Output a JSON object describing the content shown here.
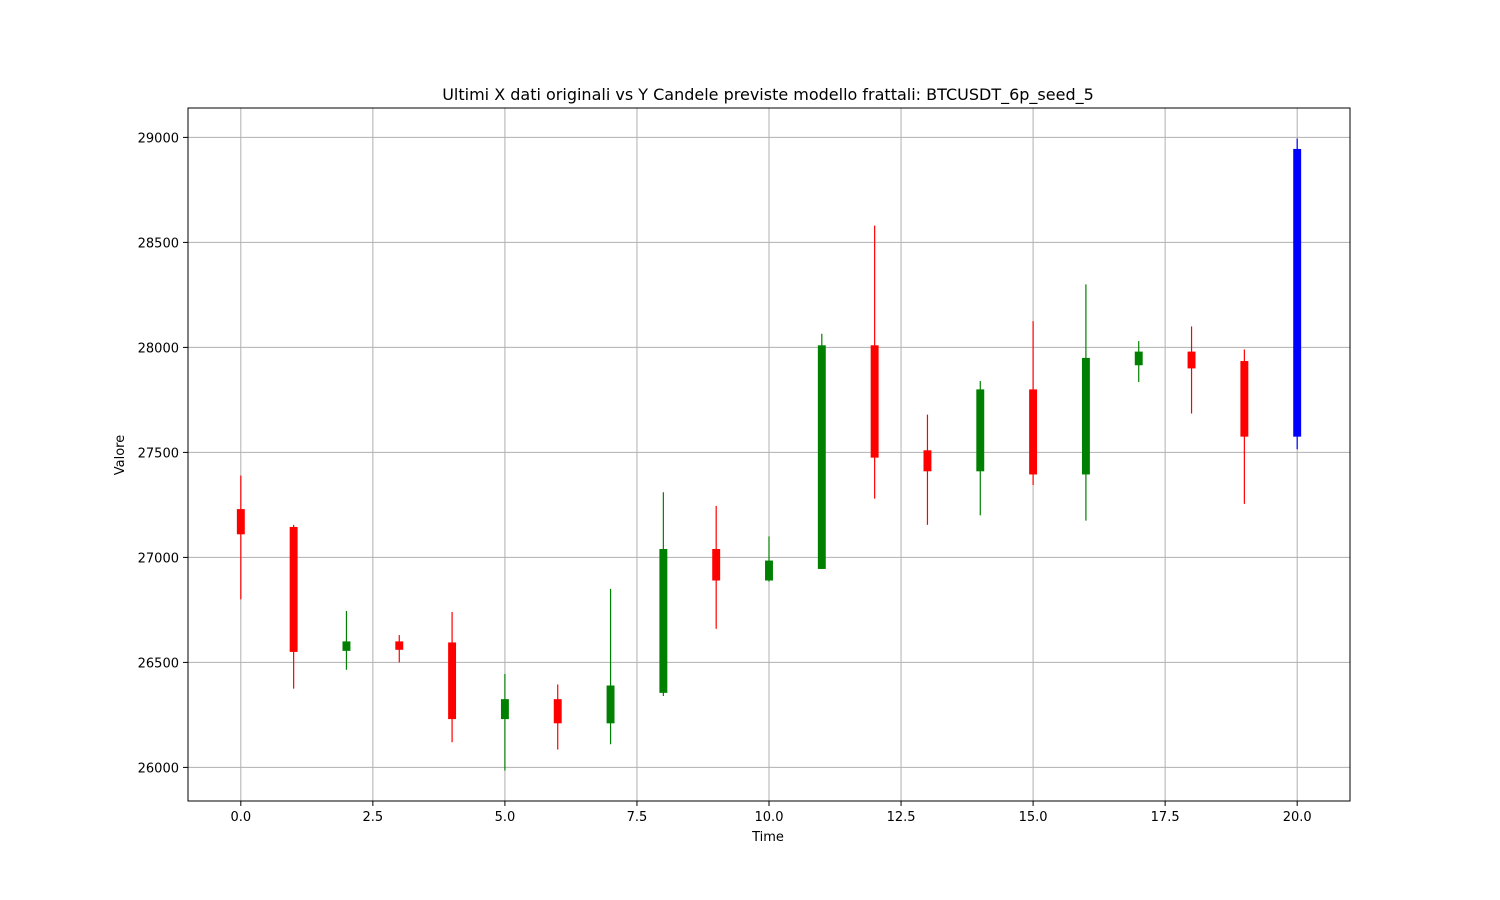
{
  "chart_data": {
    "type": "candlestick",
    "title": "Ultimi X dati originali vs Y Candele previste modello frattali: BTCUSDT_6p_seed_5",
    "xlabel": "Time",
    "ylabel": "Valore",
    "xlim": [
      -1,
      21
    ],
    "ylim": [
      25840,
      29140
    ],
    "grid": true,
    "x_ticks": [
      0.0,
      2.5,
      5.0,
      7.5,
      10.0,
      12.5,
      15.0,
      17.5,
      20.0
    ],
    "x_tick_labels": [
      "0.0",
      "2.5",
      "5.0",
      "7.5",
      "10.0",
      "12.5",
      "15.0",
      "17.5",
      "20.0"
    ],
    "y_ticks": [
      26000,
      26500,
      27000,
      27500,
      28000,
      28500,
      29000
    ],
    "y_tick_labels": [
      "26000",
      "26500",
      "27000",
      "27500",
      "28000",
      "28500",
      "29000"
    ],
    "colors": {
      "up": "#008000",
      "down": "#ff0000",
      "predicted": "#0000ff",
      "grid": "#b0b0b0"
    },
    "candles": [
      {
        "t": 0,
        "open": 27230,
        "close": 27110,
        "high": 27390,
        "low": 26800,
        "color": "#ff0000"
      },
      {
        "t": 1,
        "open": 27145,
        "close": 26550,
        "high": 27155,
        "low": 26375,
        "color": "#ff0000"
      },
      {
        "t": 2,
        "open": 26555,
        "close": 26600,
        "high": 26745,
        "low": 26465,
        "color": "#008000"
      },
      {
        "t": 3,
        "open": 26600,
        "close": 26560,
        "high": 26630,
        "low": 26500,
        "color": "#ff0000"
      },
      {
        "t": 4,
        "open": 26595,
        "close": 26230,
        "high": 26740,
        "low": 26120,
        "color": "#ff0000"
      },
      {
        "t": 5,
        "open": 26230,
        "close": 26325,
        "high": 26445,
        "low": 25985,
        "color": "#008000"
      },
      {
        "t": 6,
        "open": 26325,
        "close": 26210,
        "high": 26395,
        "low": 26085,
        "color": "#ff0000"
      },
      {
        "t": 7,
        "open": 26210,
        "close": 26390,
        "high": 26850,
        "low": 26110,
        "color": "#008000"
      },
      {
        "t": 8,
        "open": 26355,
        "close": 27040,
        "high": 27310,
        "low": 26340,
        "color": "#008000"
      },
      {
        "t": 9,
        "open": 27040,
        "close": 26890,
        "high": 27245,
        "low": 26660,
        "color": "#ff0000"
      },
      {
        "t": 10,
        "open": 26890,
        "close": 26985,
        "high": 27100,
        "low": 26885,
        "color": "#008000"
      },
      {
        "t": 11,
        "open": 26945,
        "close": 28010,
        "high": 28065,
        "low": 26945,
        "color": "#008000"
      },
      {
        "t": 12,
        "open": 28010,
        "close": 27475,
        "high": 28580,
        "low": 27280,
        "color": "#ff0000"
      },
      {
        "t": 13,
        "open": 27510,
        "close": 27410,
        "high": 27680,
        "low": 27155,
        "color": "#ff0000"
      },
      {
        "t": 14,
        "open": 27410,
        "close": 27800,
        "high": 27840,
        "low": 27200,
        "color": "#008000"
      },
      {
        "t": 15,
        "open": 27800,
        "close": 27395,
        "high": 28125,
        "low": 27345,
        "color": "#ff0000"
      },
      {
        "t": 16,
        "open": 27395,
        "close": 27950,
        "high": 28300,
        "low": 27175,
        "color": "#008000"
      },
      {
        "t": 17,
        "open": 27915,
        "close": 27980,
        "high": 28030,
        "low": 27835,
        "color": "#008000"
      },
      {
        "t": 18,
        "open": 27980,
        "close": 27900,
        "high": 28100,
        "low": 27685,
        "color": "#ff0000"
      },
      {
        "t": 19,
        "open": 27935,
        "close": 27575,
        "high": 27990,
        "low": 27255,
        "color": "#ff0000"
      },
      {
        "t": 20,
        "open": 27575,
        "close": 28945,
        "high": 28995,
        "low": 27515,
        "color": "#0000ff"
      }
    ]
  }
}
